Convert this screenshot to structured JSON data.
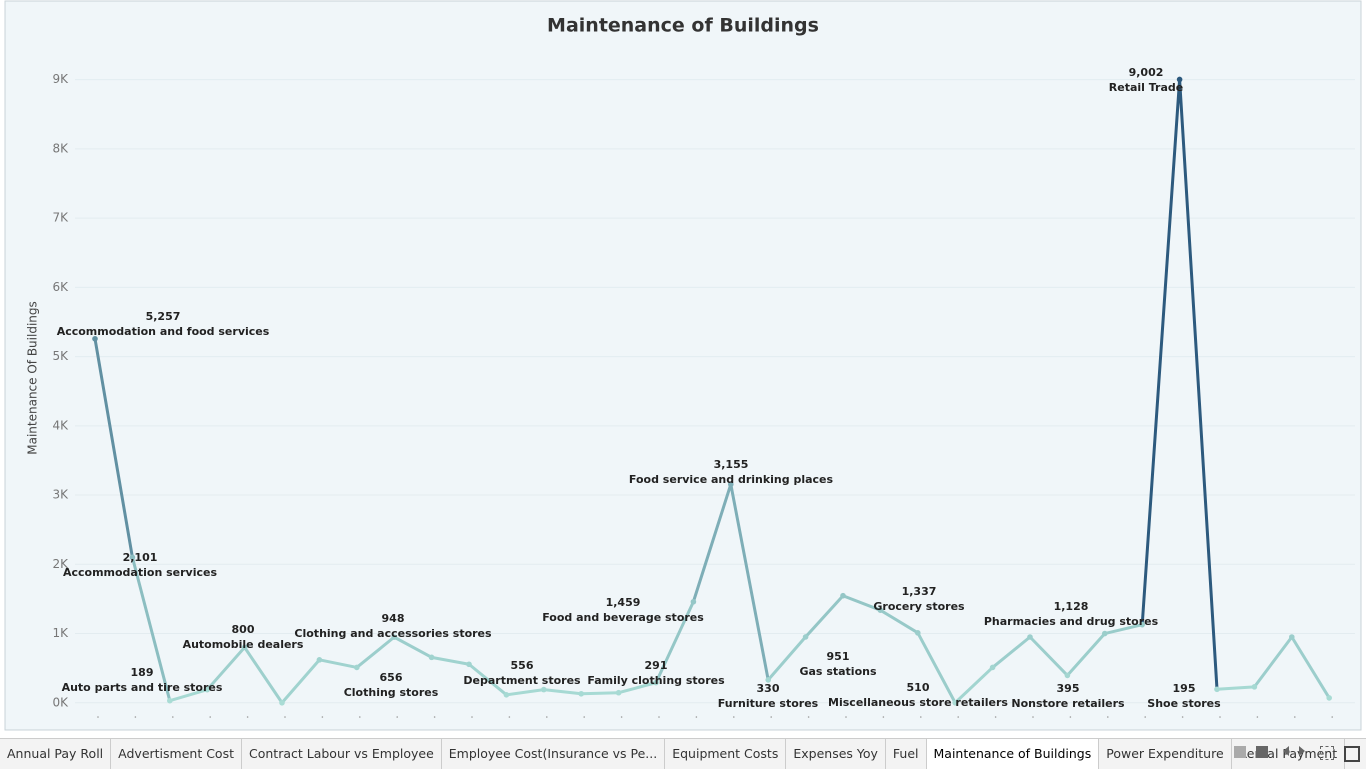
{
  "chart_data": {
    "type": "line",
    "title": "Maintenance of Buildings",
    "y_label": "Maintenance Of Buildings",
    "categories": [
      "Accommodation and food services",
      "Accommodation services",
      null,
      "Auto parts and tire stores",
      "Automobile dealers",
      null,
      null,
      null,
      "Clothing and accessories stores",
      "Clothing stores",
      "Department stores",
      null,
      null,
      null,
      null,
      "Family clothing stores",
      "Food and beverage stores",
      "Food service and drinking places",
      "Furniture stores",
      "Gas stations",
      null,
      "Grocery stores",
      null,
      null,
      "Miscellaneous store retailers",
      null,
      "Nonstore retailers",
      null,
      "Pharmacies and drug stores",
      "Retail Trade",
      "Shoe stores",
      null,
      null,
      null
    ],
    "values": [
      5257,
      2101,
      30,
      189,
      800,
      0,
      620,
      510,
      948,
      656,
      556,
      115,
      190,
      130,
      145,
      291,
      1459,
      3155,
      330,
      951,
      1546,
      1337,
      1010,
      0,
      510,
      950,
      395,
      1000,
      1128,
      9002,
      195,
      230,
      950,
      70
    ],
    "value_labels": [
      "5,257",
      "2,101",
      null,
      "189",
      "800",
      null,
      null,
      null,
      "948",
      "656",
      "556",
      null,
      null,
      null,
      null,
      "291",
      "1,459",
      "3,155",
      "330",
      "951",
      null,
      "1,337",
      null,
      null,
      "510",
      null,
      "395",
      null,
      "1,128",
      "9,002",
      "195",
      null,
      null,
      null
    ],
    "color_range": [
      "#a9dcd5",
      "#2d5a7e"
    ],
    "ylim": [
      -220,
      9500
    ],
    "yticks": [
      {
        "value": 0,
        "label": "0K"
      },
      {
        "value": 1000,
        "label": "1K"
      },
      {
        "value": 2000,
        "label": "2K"
      },
      {
        "value": 3000,
        "label": "3K"
      },
      {
        "value": 4000,
        "label": "4K"
      },
      {
        "value": 5000,
        "label": "5K"
      },
      {
        "value": 6000,
        "label": "6K"
      },
      {
        "value": 7000,
        "label": "7K"
      },
      {
        "value": 8000,
        "label": "8K"
      },
      {
        "value": 9000,
        "label": "9K"
      }
    ],
    "grid": true
  },
  "tabs": {
    "items": [
      "Annual Pay Roll",
      "Advertisment Cost",
      "Contract Labour vs Employee",
      "Employee Cost(Insurance vs Pe...",
      "Equipment Costs",
      "Expenses Yoy",
      "Fuel",
      "Maintenance of Buildings",
      "Power Expenditure",
      "Rental Payment"
    ],
    "active": 7
  }
}
